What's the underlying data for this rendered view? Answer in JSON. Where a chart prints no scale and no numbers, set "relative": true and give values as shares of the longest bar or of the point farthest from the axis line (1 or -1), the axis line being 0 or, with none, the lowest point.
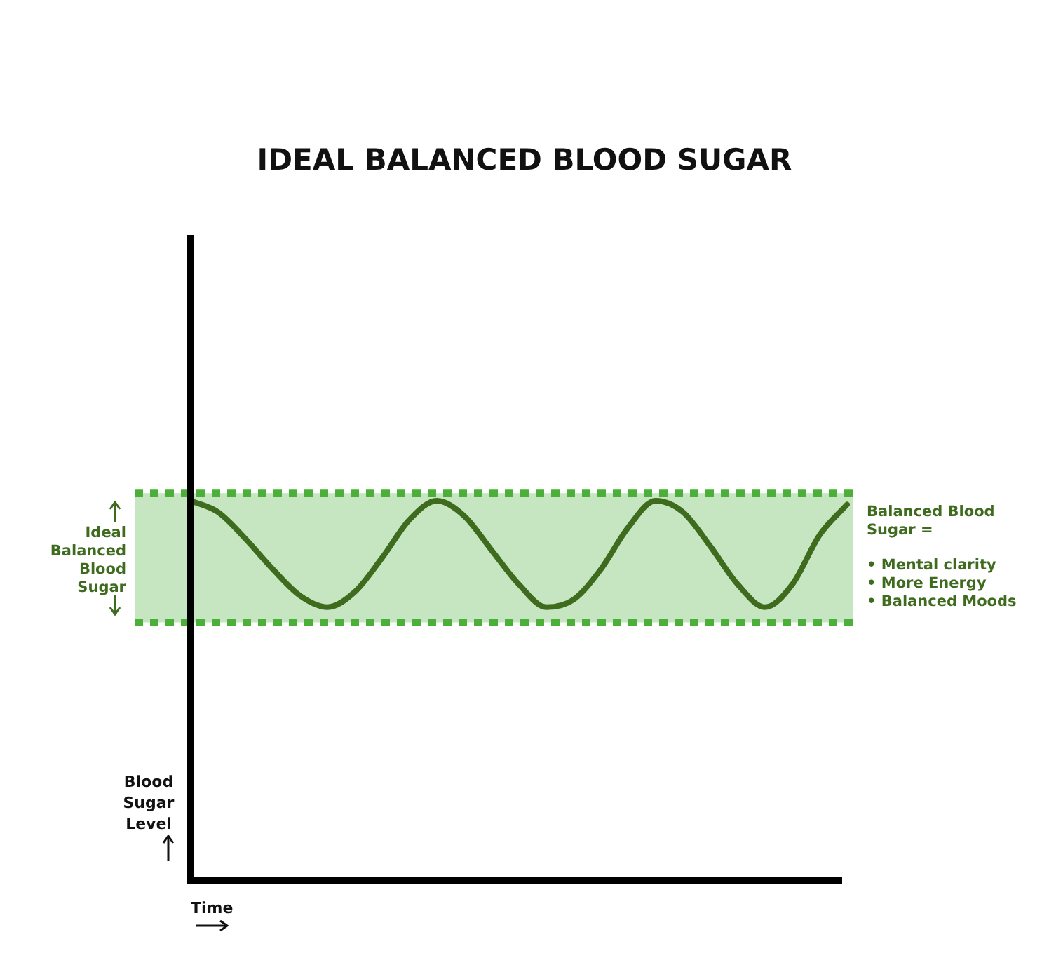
{
  "chart_data": {
    "type": "line",
    "title": "IDEAL BALANCED BLOOD SUGAR",
    "xlabel": "Time",
    "ylabel": "Blood Sugar Level",
    "relative": true,
    "categories": [
      null,
      null,
      null,
      null,
      null,
      null,
      null,
      null,
      null,
      null,
      null,
      null,
      null,
      null,
      null,
      null,
      null,
      null,
      null,
      null,
      null,
      null,
      null,
      null,
      null
    ],
    "series": [
      {
        "color": "#3f6b1e",
        "values": [
          1.0,
          0.97,
          0.9,
          0.82,
          0.75,
          0.72,
          0.76,
          0.85,
          0.95,
          1.0,
          0.96,
          0.87,
          0.78,
          0.72,
          0.74,
          0.82,
          0.93,
          1.0,
          0.97,
          0.88,
          0.78,
          0.72,
          0.78,
          0.91,
          0.99
        ]
      }
    ],
    "bands": [
      {
        "axis": "y",
        "from": 0.68,
        "to": 1.02,
        "label": "Ideal Balanced Blood Sugar",
        "color": "#c5e6c0"
      }
    ],
    "ref_lines": [
      {
        "axis": "y",
        "value": 1.02,
        "color": "#4caf3a",
        "line_style": "dotted"
      },
      {
        "axis": "y",
        "value": 0.68,
        "color": "#4caf3a",
        "line_style": "dotted"
      }
    ],
    "annotations": [
      "Balanced Blood Sugar =",
      "• Mental clarity",
      "• More Energy",
      "• Balanced Moods"
    ],
    "legend": false,
    "marker": "none",
    "line_style": "solid"
  }
}
